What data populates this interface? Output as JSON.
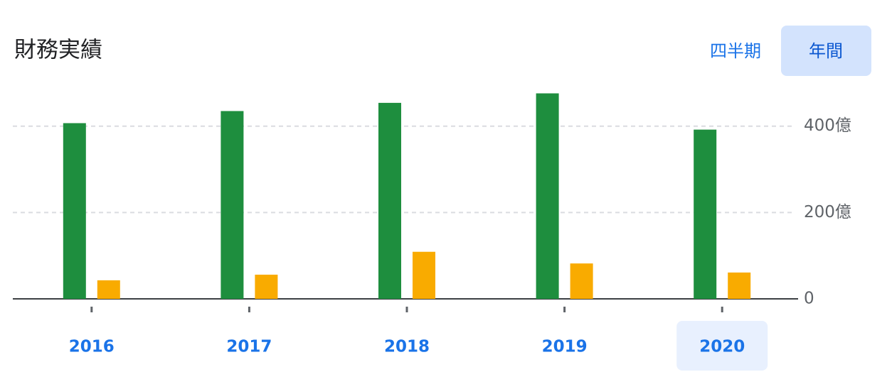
{
  "chart_data": {
    "type": "bar",
    "title": "財務実績",
    "tabs": [
      "四半期",
      "年間"
    ],
    "active_tab": 1,
    "categories": [
      "2016",
      "2017",
      "2018",
      "2019",
      "2020"
    ],
    "selected_category": 4,
    "series": [
      {
        "color": "#1e8e3e",
        "values": [
          407,
          435,
          454,
          476,
          392
        ]
      },
      {
        "color": "#f9ab00",
        "values": [
          43,
          56,
          109,
          82,
          61
        ]
      }
    ],
    "ylim": [
      0,
      490
    ],
    "yticks": [
      0,
      {
        "value": 200,
        "label": "200億"
      },
      {
        "value": 400,
        "label": "400億"
      }
    ],
    "grid": true
  }
}
